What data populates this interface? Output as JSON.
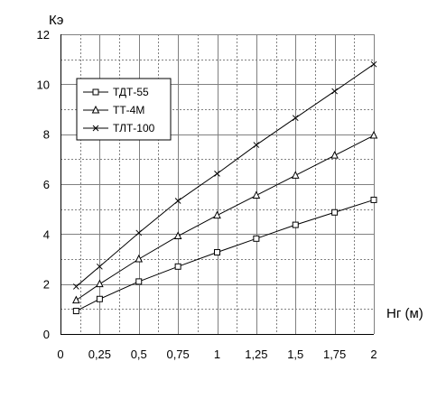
{
  "chart_data": {
    "type": "line",
    "ylabel": "Кэ",
    "xlabel": "Нг (м)",
    "xlim": [
      0,
      2
    ],
    "ylim": [
      0,
      12
    ],
    "x_ticks": [
      0,
      0.25,
      0.5,
      0.75,
      1,
      1.25,
      1.5,
      1.75,
      2
    ],
    "x_tick_labels": [
      "0",
      "0,25",
      "0,5",
      "0,75",
      "1",
      "1,25",
      "1,5",
      "1,75",
      "2"
    ],
    "y_ticks": [
      0,
      2,
      4,
      6,
      8,
      10,
      12
    ],
    "y_tick_labels": [
      "0",
      "2",
      "4",
      "6",
      "8",
      "10",
      "12"
    ],
    "grid": {
      "major": true,
      "minor": true,
      "minor_x_step": 0.125,
      "minor_y_step": 1
    },
    "legend": "top-left",
    "x": [
      0.1,
      0.25,
      0.5,
      0.75,
      1,
      1.25,
      1.5,
      1.75,
      2
    ],
    "series": [
      {
        "name": "ТДТ-55",
        "marker": "square",
        "values": [
          0.92,
          1.4,
          2.1,
          2.7,
          3.27,
          3.82,
          4.37,
          4.87,
          5.37
        ]
      },
      {
        "name": "ТТ-4М",
        "marker": "triangle",
        "values": [
          1.35,
          2.0,
          3.0,
          3.92,
          4.75,
          5.55,
          6.35,
          7.15,
          7.95
        ]
      },
      {
        "name": "ТЛТ-100",
        "marker": "cross",
        "values": [
          1.9,
          2.7,
          4.05,
          5.33,
          6.42,
          7.57,
          8.65,
          9.72,
          10.8
        ]
      }
    ],
    "colors": {
      "line": "#000000",
      "grid": "#808080",
      "background": "#ffffff"
    }
  }
}
